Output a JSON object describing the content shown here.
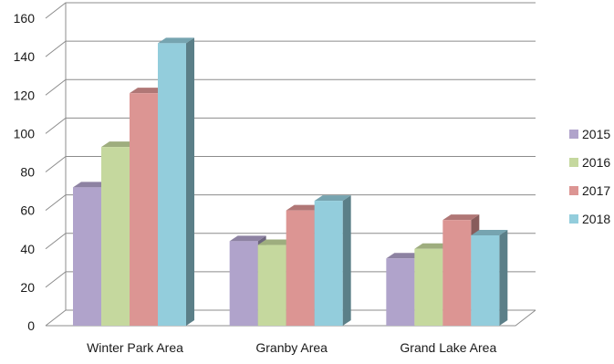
{
  "chart_data": {
    "type": "bar",
    "title": "",
    "xlabel": "",
    "ylabel": "",
    "categories": [
      "Winter Park Area",
      "Granby Area",
      "Grand Lake Area"
    ],
    "series": [
      {
        "name": "2015",
        "values": [
          72,
          44,
          35
        ],
        "color": "#b0a3cb"
      },
      {
        "name": "2016",
        "values": [
          93,
          42,
          40
        ],
        "color": "#c5d89e"
      },
      {
        "name": "2017",
        "values": [
          121,
          60,
          55
        ],
        "color": "#dc9593"
      },
      {
        "name": "2018",
        "values": [
          147,
          65,
          47
        ],
        "color": "#93cddc"
      }
    ],
    "ylim": [
      0,
      160
    ],
    "yticks": [
      "0",
      "20",
      "40",
      "60",
      "80",
      "100",
      "120",
      "140",
      "160"
    ],
    "grid": true,
    "legend": "right",
    "style": "3d-clustered-column"
  }
}
